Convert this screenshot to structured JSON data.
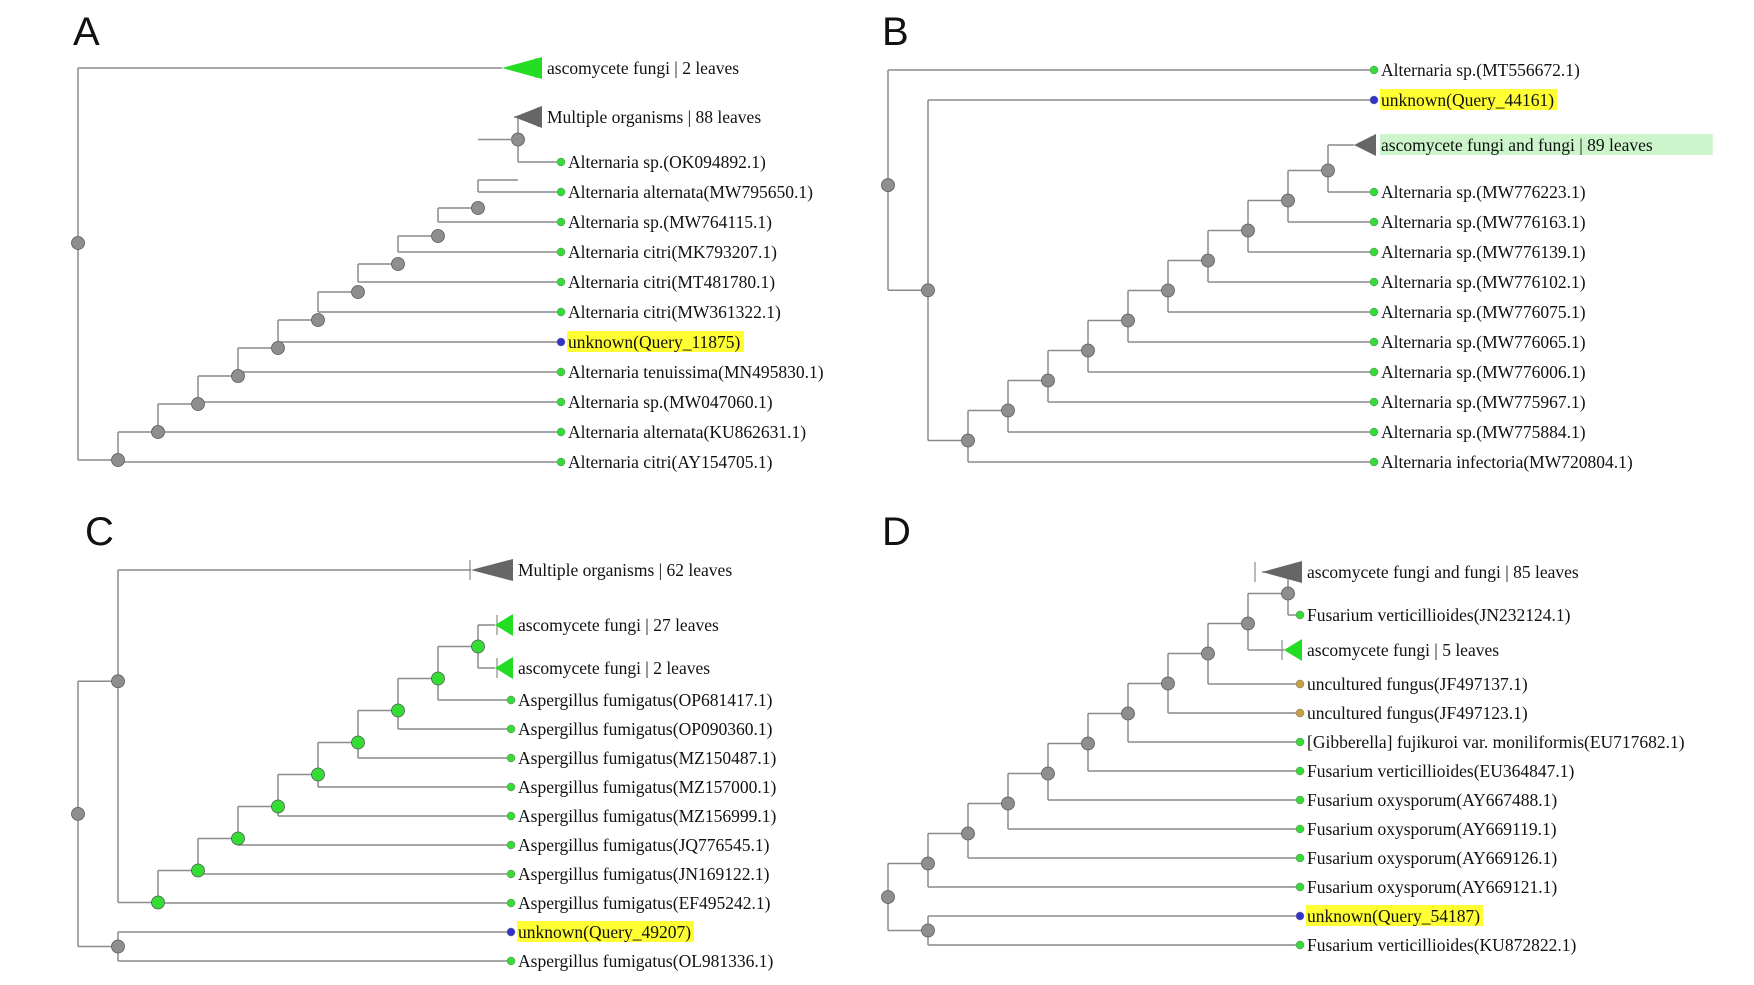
{
  "colors": {
    "branch": "#8a8a8a",
    "node_gray": "#8e8e8e",
    "node_green": "#33dd33",
    "leaf_green": "#33dd33",
    "leaf_blue": "#3333cc",
    "leaf_tan": "#c8a040",
    "collapsed_green": "#22dd22",
    "collapsed_gray": "#666666",
    "highlight_yellow": "#ffff33",
    "highlight_lightgreen": "#ccf5cc"
  },
  "panels": [
    {
      "letter": "A",
      "leaves": [
        {
          "type": "collapsed",
          "color": "green",
          "label": "ascomycete fungi | 2 leaves"
        },
        {
          "type": "collapsed",
          "color": "gray",
          "label": "Multiple organisms | 88 leaves"
        },
        {
          "type": "leaf",
          "color": "green",
          "label": "Alternaria sp.(OK094892.1)"
        },
        {
          "type": "leaf",
          "color": "green",
          "label": "Alternaria alternata(MW795650.1)"
        },
        {
          "type": "leaf",
          "color": "green",
          "label": "Alternaria sp.(MW764115.1)"
        },
        {
          "type": "leaf",
          "color": "green",
          "label": "Alternaria citri(MK793207.1)"
        },
        {
          "type": "leaf",
          "color": "green",
          "label": "Alternaria citri(MT481780.1)"
        },
        {
          "type": "leaf",
          "color": "green",
          "label": "Alternaria citri(MW361322.1)"
        },
        {
          "type": "leaf",
          "color": "blue",
          "label": "unknown(Query_11875)",
          "highlight": "yellow"
        },
        {
          "type": "leaf",
          "color": "green",
          "label": "Alternaria tenuissima(MN495830.1)"
        },
        {
          "type": "leaf",
          "color": "green",
          "label": "Alternaria sp.(MW047060.1)"
        },
        {
          "type": "leaf",
          "color": "green",
          "label": "Alternaria alternata(KU862631.1)"
        },
        {
          "type": "leaf",
          "color": "green",
          "label": "Alternaria citri(AY154705.1)"
        }
      ]
    },
    {
      "letter": "B",
      "leaves": [
        {
          "type": "leaf",
          "color": "green",
          "label": "Alternaria sp.(MT556672.1)"
        },
        {
          "type": "leaf",
          "color": "blue",
          "label": "unknown(Query_44161)",
          "highlight": "yellow"
        },
        {
          "type": "collapsed",
          "color": "gray",
          "label": "ascomycete fungi and fungi | 89 leaves",
          "highlight": "lightgreen"
        },
        {
          "type": "leaf",
          "color": "green",
          "label": "Alternaria sp.(MW776223.1)"
        },
        {
          "type": "leaf",
          "color": "green",
          "label": "Alternaria sp.(MW776163.1)"
        },
        {
          "type": "leaf",
          "color": "green",
          "label": "Alternaria sp.(MW776139.1)"
        },
        {
          "type": "leaf",
          "color": "green",
          "label": "Alternaria sp.(MW776102.1)"
        },
        {
          "type": "leaf",
          "color": "green",
          "label": "Alternaria sp.(MW776075.1)"
        },
        {
          "type": "leaf",
          "color": "green",
          "label": "Alternaria sp.(MW776065.1)"
        },
        {
          "type": "leaf",
          "color": "green",
          "label": "Alternaria sp.(MW776006.1)"
        },
        {
          "type": "leaf",
          "color": "green",
          "label": "Alternaria sp.(MW775967.1)"
        },
        {
          "type": "leaf",
          "color": "green",
          "label": "Alternaria sp.(MW775884.1)"
        },
        {
          "type": "leaf",
          "color": "green",
          "label": "Alternaria infectoria(MW720804.1)"
        }
      ]
    },
    {
      "letter": "C",
      "leaves": [
        {
          "type": "collapsed",
          "color": "gray",
          "label": "Multiple organisms | 62 leaves"
        },
        {
          "type": "collapsed",
          "color": "green",
          "label": "ascomycete fungi | 27 leaves"
        },
        {
          "type": "collapsed",
          "color": "green",
          "label": "ascomycete fungi | 2 leaves"
        },
        {
          "type": "leaf",
          "color": "green",
          "label": "Aspergillus fumigatus(OP681417.1)"
        },
        {
          "type": "leaf",
          "color": "green",
          "label": "Aspergillus fumigatus(OP090360.1)"
        },
        {
          "type": "leaf",
          "color": "green",
          "label": "Aspergillus fumigatus(MZ150487.1)"
        },
        {
          "type": "leaf",
          "color": "green",
          "label": "Aspergillus fumigatus(MZ157000.1)"
        },
        {
          "type": "leaf",
          "color": "green",
          "label": "Aspergillus fumigatus(MZ156999.1)"
        },
        {
          "type": "leaf",
          "color": "green",
          "label": "Aspergillus fumigatus(JQ776545.1)"
        },
        {
          "type": "leaf",
          "color": "green",
          "label": "Aspergillus fumigatus(JN169122.1)"
        },
        {
          "type": "leaf",
          "color": "green",
          "label": "Aspergillus fumigatus(EF495242.1)"
        },
        {
          "type": "leaf",
          "color": "blue",
          "label": "unknown(Query_49207)",
          "highlight": "yellow"
        },
        {
          "type": "leaf",
          "color": "green",
          "label": "Aspergillus fumigatus(OL981336.1)"
        }
      ]
    },
    {
      "letter": "D",
      "leaves": [
        {
          "type": "collapsed",
          "color": "gray",
          "label": "ascomycete fungi and fungi | 85 leaves"
        },
        {
          "type": "leaf",
          "color": "green",
          "label": "Fusarium verticillioides(JN232124.1)"
        },
        {
          "type": "collapsed",
          "color": "green",
          "label": "ascomycete fungi | 5 leaves"
        },
        {
          "type": "leaf",
          "color": "tan",
          "label": "uncultured fungus(JF497137.1)"
        },
        {
          "type": "leaf",
          "color": "tan",
          "label": "uncultured fungus(JF497123.1)"
        },
        {
          "type": "leaf",
          "color": "green",
          "label": "[Gibberella] fujikuroi var. moniliformis(EU717682.1)"
        },
        {
          "type": "leaf",
          "color": "green",
          "label": "Fusarium verticillioides(EU364847.1)"
        },
        {
          "type": "leaf",
          "color": "green",
          "label": "Fusarium oxysporum(AY667488.1)"
        },
        {
          "type": "leaf",
          "color": "green",
          "label": "Fusarium oxysporum(AY669119.1)"
        },
        {
          "type": "leaf",
          "color": "green",
          "label": "Fusarium oxysporum(AY669126.1)"
        },
        {
          "type": "leaf",
          "color": "green",
          "label": "Fusarium oxysporum(AY669121.1)"
        },
        {
          "type": "leaf",
          "color": "blue",
          "label": "unknown(Query_54187)",
          "highlight": "yellow"
        },
        {
          "type": "leaf",
          "color": "green",
          "label": "Fusarium verticillioides(KU872822.1)"
        }
      ]
    }
  ]
}
